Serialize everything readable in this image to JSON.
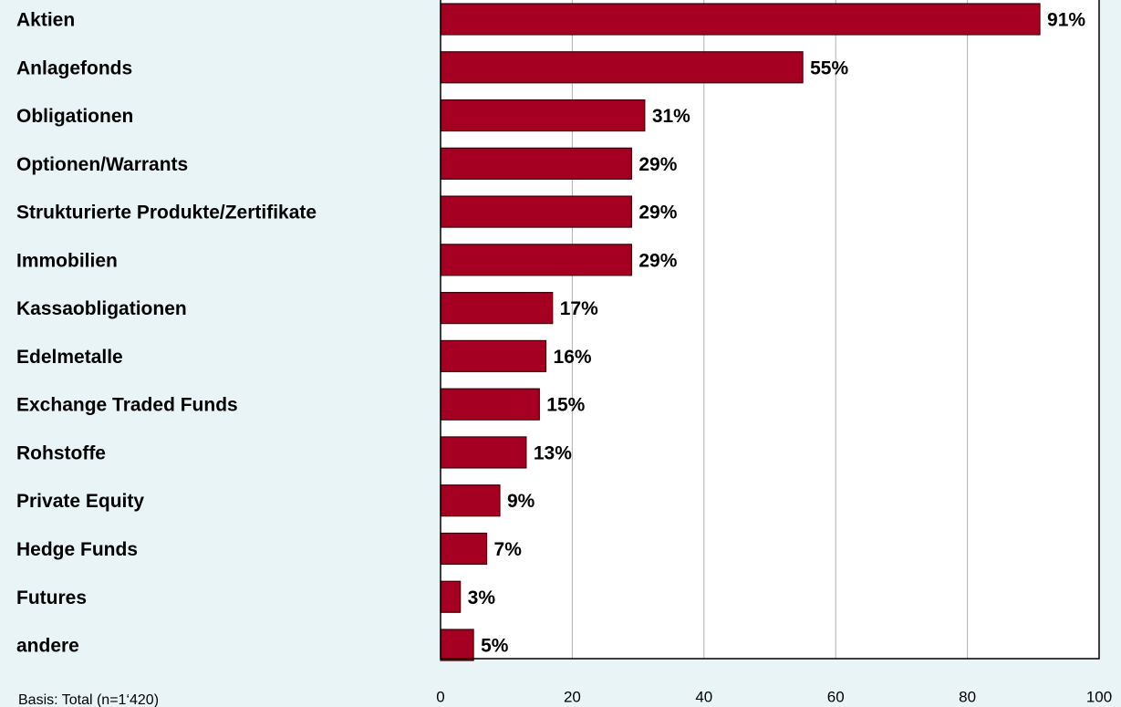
{
  "chart_data": {
    "type": "bar",
    "orientation": "horizontal",
    "categories": [
      "Aktien",
      "Anlagefonds",
      "Obligationen",
      "Optionen/Warrants",
      "Strukturierte Produkte/Zertifikate",
      "Immobilien",
      "Kassaobligationen",
      "Edelmetalle",
      "Exchange Traded Funds",
      "Rohstoffe",
      "Private Equity",
      "Hedge Funds",
      "Futures",
      "andere"
    ],
    "values": [
      91,
      55,
      31,
      29,
      29,
      29,
      17,
      16,
      15,
      13,
      9,
      7,
      3,
      5
    ],
    "value_labels": [
      "91%",
      "55%",
      "31%",
      "29%",
      "29%",
      "29%",
      "17%",
      "16%",
      "15%",
      "13%",
      "9%",
      "7%",
      "3%",
      "5%"
    ],
    "color": "#a50021",
    "xlim": [
      0,
      100
    ],
    "xticks": [
      0,
      20,
      40,
      60,
      80,
      100
    ],
    "grid": true,
    "note": "Basis: Total (n=1‘420)"
  }
}
